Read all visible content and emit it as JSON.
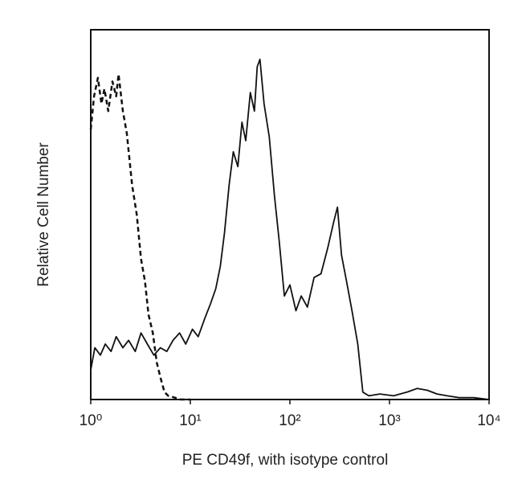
{
  "chart_data": {
    "type": "line",
    "x_label": "PE CD49f, with isotype control",
    "y_label": "Relative Cell Number",
    "xscale": "log",
    "xlim": [
      1,
      10000
    ],
    "ylim": [
      0,
      100
    ],
    "xticks": [
      {
        "value": 1,
        "label": "10⁰"
      },
      {
        "value": 10,
        "label": "10¹"
      },
      {
        "value": 100,
        "label": "10²"
      },
      {
        "value": 1000,
        "label": "10³"
      },
      {
        "value": 10000,
        "label": "10⁴"
      }
    ],
    "series": [
      {
        "color": "#111111",
        "line_style": "solid",
        "x": [
          1,
          1.1,
          1.25,
          1.4,
          1.6,
          1.8,
          2.1,
          2.4,
          2.8,
          3.2,
          3.7,
          4.3,
          5,
          5.8,
          6.7,
          7.8,
          9,
          10.5,
          12,
          14,
          16,
          18,
          20,
          22,
          24.5,
          27,
          30,
          33,
          36,
          40,
          44,
          47,
          50,
          55,
          62,
          70,
          78,
          88,
          100,
          115,
          130,
          150,
          175,
          205,
          240,
          275,
          300,
          330,
          370,
          420,
          480,
          540,
          620,
          800,
          1100,
          1500,
          1900,
          2400,
          3000,
          3800,
          5000,
          7000,
          10000
        ],
        "values": [
          8,
          14,
          12,
          15,
          13,
          17,
          14,
          16,
          13,
          18,
          15,
          12,
          14,
          13,
          16,
          18,
          15,
          19,
          17,
          22,
          26,
          30,
          36,
          45,
          58,
          67,
          63,
          75,
          70,
          83,
          78,
          90,
          92,
          80,
          71,
          55,
          43,
          28,
          31,
          24,
          28,
          25,
          33,
          34,
          41,
          48,
          52,
          39,
          32,
          24,
          15,
          2,
          1,
          1.5,
          1,
          2,
          3,
          2.5,
          1.5,
          1,
          0.5,
          0.5,
          0
        ]
      },
      {
        "color": "#111111",
        "line_style": "dashed",
        "x": [
          1,
          1.08,
          1.18,
          1.28,
          1.37,
          1.5,
          1.65,
          1.8,
          1.9,
          2.1,
          2.3,
          2.6,
          2.9,
          3.2,
          3.5,
          3.8,
          4.2,
          4.6,
          5,
          5.5,
          6,
          7,
          8,
          10
        ],
        "values": [
          73,
          82,
          87,
          80,
          84,
          78,
          86,
          82,
          88,
          78,
          72,
          58,
          50,
          38,
          32,
          23,
          18,
          10,
          6,
          2,
          1,
          0.5,
          0,
          0
        ]
      }
    ]
  }
}
